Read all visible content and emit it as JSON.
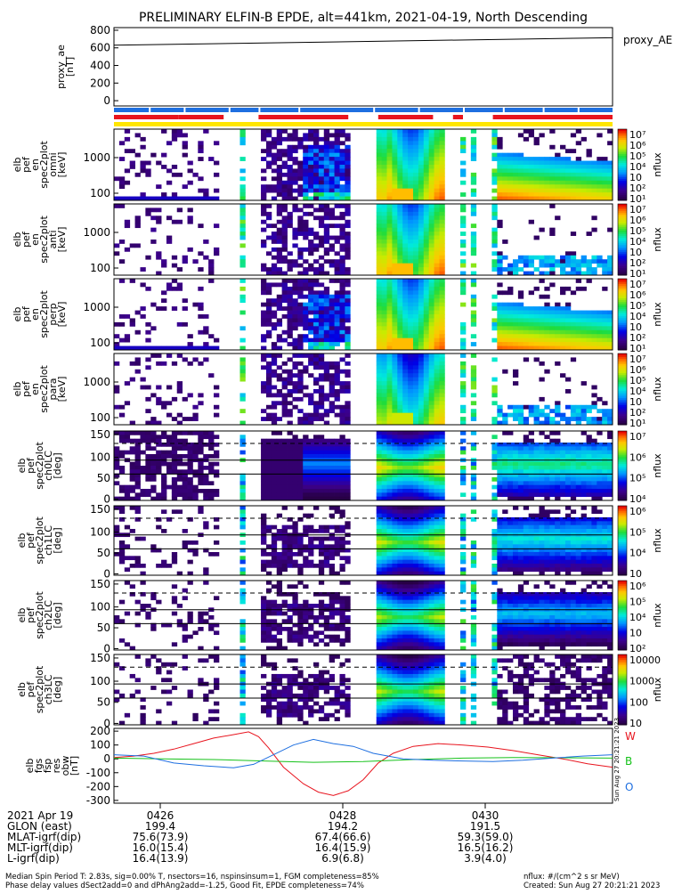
{
  "title": "PRELIMINARY ELFIN-B EPDE, alt=441km, 2021-04-19, North Descending",
  "colors": {
    "red": "#e8141e",
    "blue": "#1e6fe0",
    "yellow": "#ffe600",
    "green": "#16c21a"
  },
  "chart_data": [
    {
      "type": "line",
      "name": "proxy_ae",
      "ylabel": [
        "proxy_ae",
        "[nT]"
      ],
      "yticks": [
        "800",
        "600",
        "400",
        "200",
        "0"
      ],
      "ylim": [
        -60,
        830
      ],
      "x": [
        0,
        1
      ],
      "values": [
        630,
        715
      ],
      "legend": "proxy_AE"
    },
    {
      "type": "heatmap",
      "ylabel": [
        "elb",
        "pef",
        "en",
        "spec2plot",
        "omni",
        "[keV]"
      ],
      "yticks": [
        "1000",
        "100"
      ],
      "colorbar_ticks": [
        "10⁷",
        "10⁶",
        "10⁵",
        "10⁴",
        "10⁳",
        "10²",
        "10¹"
      ],
      "colorbar_label": "nflux"
    },
    {
      "type": "heatmap",
      "ylabel": [
        "elb",
        "pef",
        "en",
        "spec2plot",
        "anti",
        "[keV]"
      ],
      "yticks": [
        "1000",
        "100"
      ],
      "colorbar_ticks": [
        "10⁷",
        "10⁶",
        "10⁵",
        "10⁴",
        "10⁳",
        "10²",
        "10¹"
      ],
      "colorbar_label": "nflux"
    },
    {
      "type": "heatmap",
      "ylabel": [
        "elb",
        "pef",
        "en",
        "spec2plot",
        "perp",
        "[keV]"
      ],
      "yticks": [
        "1000",
        "100"
      ],
      "colorbar_ticks": [
        "10⁷",
        "10⁶",
        "10⁵",
        "10⁴",
        "10⁳",
        "10²",
        "10¹"
      ],
      "colorbar_label": "nflux"
    },
    {
      "type": "heatmap",
      "ylabel": [
        "elb",
        "pef",
        "en",
        "spec2plot",
        "para",
        "[keV]"
      ],
      "yticks": [
        "1000",
        "100"
      ],
      "colorbar_ticks": [
        "10⁷",
        "10⁶",
        "10⁵",
        "10⁴",
        "10⁳",
        "10²",
        "10¹"
      ],
      "colorbar_label": "nflux"
    },
    {
      "type": "heatmap",
      "ylabel": [
        "elb",
        "pef",
        "spec2plot",
        "ch0LC",
        "[deg]"
      ],
      "yticks": [
        "150",
        "100",
        "50",
        "0"
      ],
      "colorbar_ticks": [
        "10⁷",
        "10⁶",
        "10⁵",
        "10⁴"
      ],
      "colorbar_label": "nflux"
    },
    {
      "type": "heatmap",
      "ylabel": [
        "elb",
        "pef",
        "spec2plot",
        "ch1LC",
        "[deg]"
      ],
      "yticks": [
        "150",
        "100",
        "50",
        "0"
      ],
      "colorbar_ticks": [
        "10⁶",
        "10⁵",
        "10⁴",
        "10⁳"
      ],
      "colorbar_label": "nflux"
    },
    {
      "type": "heatmap",
      "ylabel": [
        "elb",
        "pef",
        "spec2plot",
        "ch2LC",
        "[deg]"
      ],
      "yticks": [
        "150",
        "100",
        "50",
        "0"
      ],
      "colorbar_ticks": [
        "10⁶",
        "10⁵",
        "10⁴",
        "10⁳",
        "10²"
      ],
      "colorbar_label": "nflux"
    },
    {
      "type": "heatmap",
      "ylabel": [
        "elb",
        "pef",
        "spec2plot",
        "ch3LC",
        "[deg]"
      ],
      "yticks": [
        "150",
        "100",
        "50",
        "0"
      ],
      "colorbar_ticks": [
        "10000",
        "1000",
        "100",
        "10"
      ],
      "colorbar_label": "nflux"
    },
    {
      "type": "line",
      "name": "elb_fgs_fsp_res_obw",
      "ylabel": [
        "elb",
        "fgs",
        "fsp",
        "res",
        "obw",
        "[nT]"
      ],
      "yticks": [
        "200",
        "100",
        "0",
        "-100",
        "-200",
        "-300"
      ],
      "ylim": [
        -320,
        220
      ],
      "series": [
        {
          "name": "W",
          "color": "#e8141e",
          "x": [
            0,
            0.04,
            0.08,
            0.12,
            0.16,
            0.2,
            0.24,
            0.27,
            0.29,
            0.31,
            0.34,
            0.38,
            0.41,
            0.44,
            0.47,
            0.5,
            0.53,
            0.56,
            0.6,
            0.65,
            0.7,
            0.75,
            0.8,
            0.85,
            0.9,
            0.95,
            1
          ],
          "y": [
            10,
            20,
            40,
            70,
            110,
            150,
            175,
            195,
            160,
            80,
            -60,
            -180,
            -240,
            -265,
            -230,
            -150,
            -30,
            40,
            90,
            110,
            100,
            85,
            60,
            30,
            0,
            -35,
            -60
          ]
        },
        {
          "name": "B",
          "color": "#16c21a",
          "x": [
            0,
            0.1,
            0.2,
            0.3,
            0.4,
            0.5,
            0.6,
            0.7,
            0.8,
            0.9,
            1
          ],
          "y": [
            5,
            0,
            -5,
            -15,
            -25,
            -20,
            -5,
            5,
            10,
            8,
            5
          ]
        },
        {
          "name": "O",
          "color": "#1e6fe0",
          "x": [
            0,
            0.06,
            0.12,
            0.18,
            0.24,
            0.28,
            0.32,
            0.36,
            0.4,
            0.44,
            0.48,
            0.52,
            0.58,
            0.64,
            0.7,
            0.76,
            0.82,
            0.88,
            0.94,
            1
          ],
          "y": [
            30,
            20,
            -30,
            -50,
            -65,
            -40,
            30,
            100,
            140,
            110,
            90,
            40,
            0,
            -10,
            -15,
            -20,
            -10,
            5,
            20,
            30
          ]
        }
      ]
    }
  ],
  "bottom": {
    "rows": [
      [
        "2021 Apr 19",
        "0426",
        "0428",
        "0430"
      ],
      [
        "GLON (east)",
        "199.4",
        "194.2",
        "191.5"
      ],
      [
        "MLAT-igrf(dip)",
        "75.6(73.9)",
        "67.4(66.6)",
        "59.3(59.0)"
      ],
      [
        "MLT-igrf(dip)",
        "16.0(15.4)",
        "16.4(15.9)",
        "16.5(16.2)"
      ],
      [
        "L-igrf(dip)",
        "16.4(13.9)",
        "6.9(6.8)",
        "3.9(4.0)"
      ]
    ],
    "footer_left_1": "Median Spin Period T: 2.83s, sig=0.00% T, nsectors=16, nspinsinsum=1, FGM completeness=85%",
    "footer_left_2": "Phase delay values dSect2add=0 and dPhAng2add=-1.25, Good Fit, EPDE completeness=74%",
    "footer_right_1": "nflux: #/(cm^2 s sr MeV)",
    "footer_right_2": "Created: Sun Aug 27 20:21:21 2023",
    "side_stamp": "Sun Aug 27 20:21:21 2023"
  }
}
